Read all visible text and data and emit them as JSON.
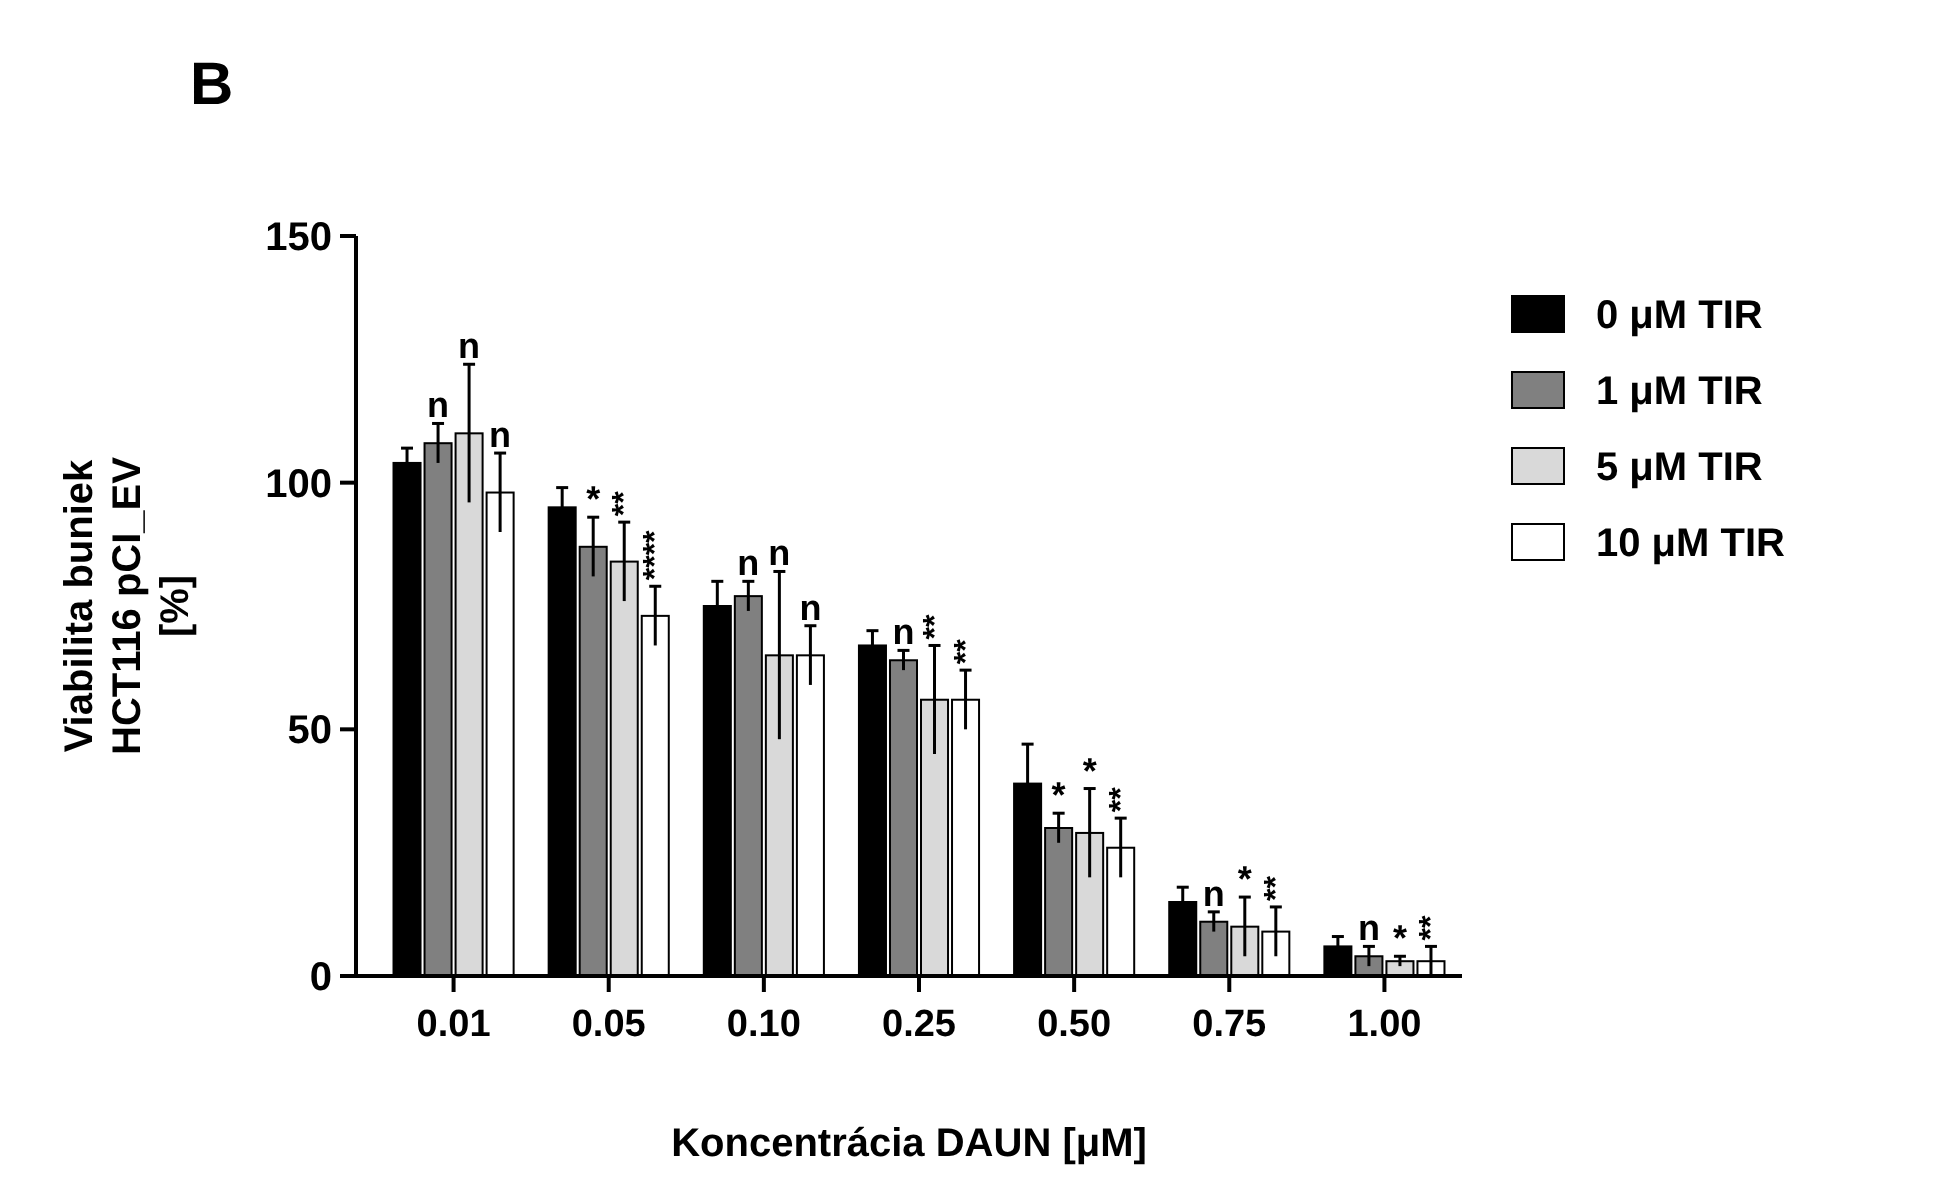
{
  "chart_data": {
    "type": "bar",
    "title": "B",
    "xlabel": "Koncentrácia DAUN [μM]",
    "ylabel": "Viabilita buniek\nHCT116 pCI_EV\n[%]",
    "categories": [
      "0.01",
      "0.05",
      "0.10",
      "0.25",
      "0.50",
      "0.75",
      "1.00"
    ],
    "series": [
      {
        "name": "0 μM TIR",
        "color": "#000000",
        "values": [
          104,
          95,
          75,
          67,
          39,
          15,
          6
        ],
        "errors": [
          3,
          4,
          5,
          3,
          8,
          3,
          2
        ]
      },
      {
        "name": "1 μM TIR",
        "color": "#808080",
        "values": [
          108,
          87,
          77,
          64,
          30,
          11,
          4
        ],
        "errors": [
          4,
          6,
          3,
          2,
          3,
          2,
          2
        ]
      },
      {
        "name": "5 μM TIR",
        "color": "#d9d9d9",
        "values": [
          110,
          84,
          65,
          56,
          29,
          10,
          3
        ],
        "errors": [
          14,
          8,
          17,
          11,
          9,
          6,
          1
        ]
      },
      {
        "name": "10 μM TIR",
        "color": "#ffffff",
        "values": [
          98,
          73,
          65,
          56,
          26,
          9,
          3
        ],
        "errors": [
          8,
          6,
          6,
          6,
          6,
          5,
          3
        ]
      }
    ],
    "ylim": [
      0,
      150
    ],
    "yticks": [
      0,
      50,
      100,
      150
    ],
    "legend": "right",
    "annotations": [
      {
        "text": "n",
        "x": "0.01",
        "y": 108
      },
      {
        "text": "n",
        "x": "0.01",
        "y": 110
      },
      {
        "text": "n",
        "x": "0.01",
        "y": 98
      },
      {
        "text": "*",
        "x": "0.05",
        "y": 87
      },
      {
        "text": "**",
        "x": "0.05",
        "y": 84
      },
      {
        "text": "****",
        "x": "0.05",
        "y": 73
      },
      {
        "text": "n",
        "x": "0.10",
        "y": 77
      },
      {
        "text": "n",
        "x": "0.10",
        "y": 65
      },
      {
        "text": "n",
        "x": "0.10",
        "y": 65
      },
      {
        "text": "n",
        "x": "0.25",
        "y": 64
      },
      {
        "text": "**",
        "x": "0.25",
        "y": 56
      },
      {
        "text": "**",
        "x": "0.25",
        "y": 56
      },
      {
        "text": "*",
        "x": "0.50",
        "y": 30
      },
      {
        "text": "*",
        "x": "0.50",
        "y": 29
      },
      {
        "text": "**",
        "x": "0.50",
        "y": 26
      },
      {
        "text": "n",
        "x": "0.75",
        "y": 11
      },
      {
        "text": "*",
        "x": "0.75",
        "y": 10
      },
      {
        "text": "**",
        "x": "0.75",
        "y": 9
      },
      {
        "text": "n",
        "x": "1.00",
        "y": 4
      },
      {
        "text": "*",
        "x": "1.00",
        "y": 3
      },
      {
        "text": "**",
        "x": "1.00",
        "y": 3
      }
    ]
  }
}
